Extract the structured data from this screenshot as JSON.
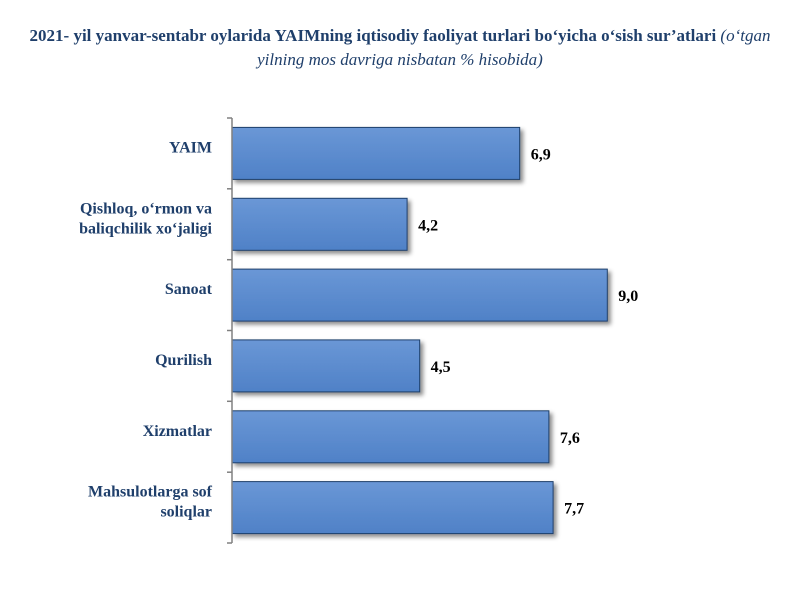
{
  "title": {
    "main": "2021- yil yanvar-sentabr oylarida YAIMning iqtisodiy faoliyat turlari bo‘yicha o‘sish sur’atlari",
    "sub": "(o‘tgan yilning mos davriga nisbatan % hisobida)"
  },
  "chart_data": {
    "type": "bar",
    "orientation": "horizontal",
    "categories": [
      [
        "YAIM"
      ],
      [
        "Qishloq, o‘rmon va",
        "baliqchilik xo‘jaligi"
      ],
      [
        "Sanoat"
      ],
      [
        "Qurilish"
      ],
      [
        "Xizmatlar"
      ],
      [
        "Mahsulotlarga sof",
        "soliqlar"
      ]
    ],
    "values": [
      6.9,
      4.2,
      9.0,
      4.5,
      7.6,
      7.7
    ],
    "value_labels": [
      "6,9",
      "4,2",
      "9,0",
      "4,5",
      "7,6",
      "7,7"
    ],
    "xlim": [
      0,
      9.0
    ],
    "grid": false,
    "legend": "none",
    "colors": {
      "bar_fill": "#4f81c7",
      "bar_stroke": "#1f3f6b",
      "axis": "#808080",
      "title": "#1f3f6b",
      "category_text": "#1f3f6b",
      "value_text": "#000000"
    }
  }
}
